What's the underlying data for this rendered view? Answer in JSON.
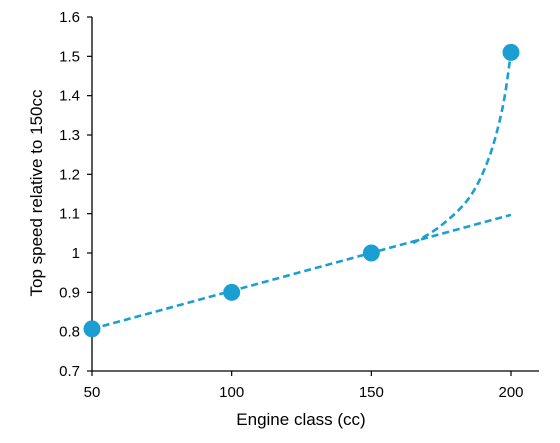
{
  "chart_data": {
    "type": "scatter",
    "xlabel": "Engine class (cc)",
    "ylabel": "Top speed relative to 150cc",
    "xlim": [
      50,
      200
    ],
    "ylim": [
      0.7,
      1.6
    ],
    "x_ticks": [
      "50",
      "100",
      "150",
      "200"
    ],
    "y_ticks": [
      "0.7",
      "0.8",
      "0.9",
      "1",
      "1.1",
      "1.2",
      "1.3",
      "1.4",
      "1.5",
      "1.6"
    ],
    "grid": false,
    "points": [
      {
        "x": 50,
        "y": 0.807
      },
      {
        "x": 100,
        "y": 0.9
      },
      {
        "x": 150,
        "y": 1.0
      },
      {
        "x": 200,
        "y": 1.51
      }
    ],
    "trend_lines": [
      {
        "style": "dashed",
        "points": [
          [
            50,
            0.807
          ],
          [
            200,
            1.097
          ]
        ]
      },
      {
        "style": "dashed",
        "points": [
          [
            165,
            1.025
          ],
          [
            175,
            1.07
          ],
          [
            185,
            1.14
          ],
          [
            192,
            1.24
          ],
          [
            197,
            1.37
          ],
          [
            200,
            1.51
          ]
        ]
      }
    ],
    "colors": {
      "series": "#1b9fd2",
      "axis": "#000000"
    }
  }
}
